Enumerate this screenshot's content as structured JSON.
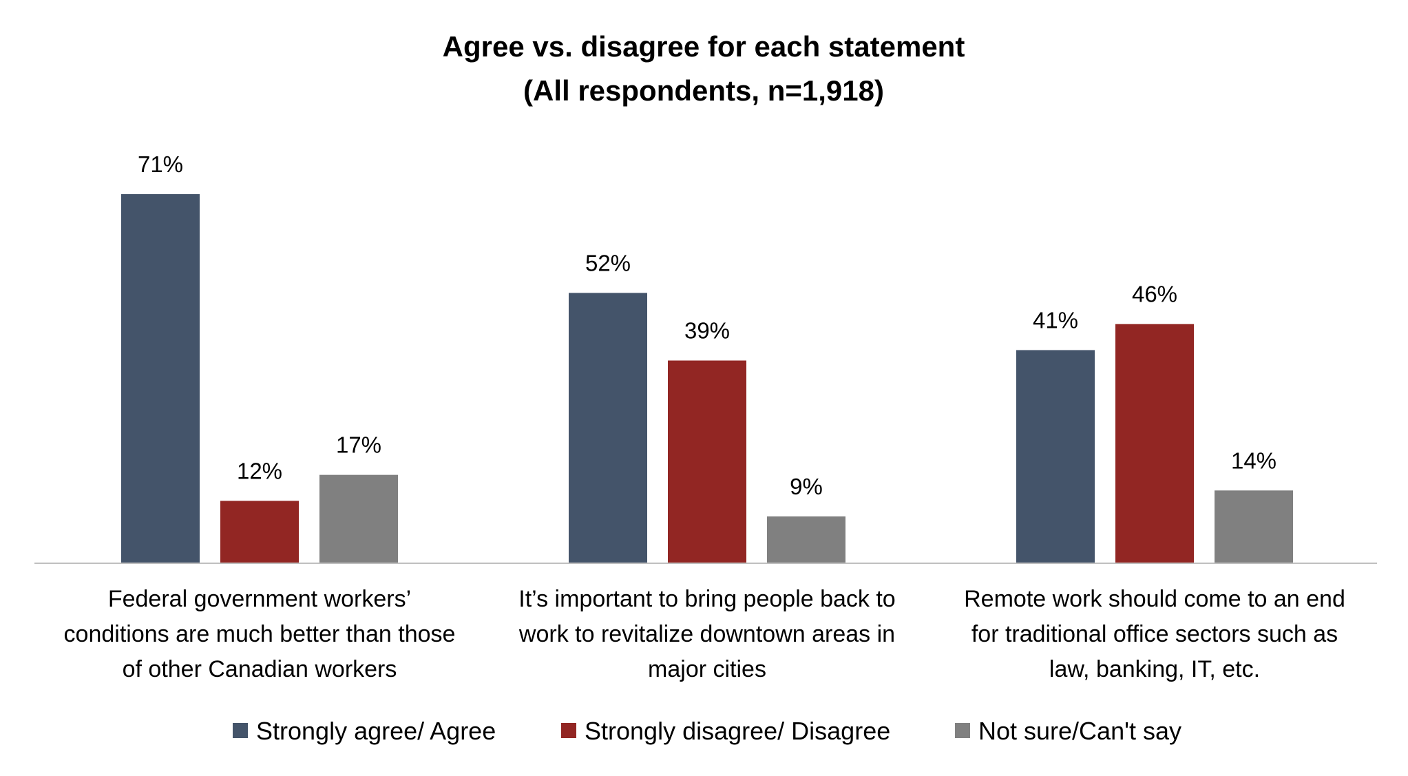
{
  "chart_data": {
    "type": "bar",
    "title": "Agree vs. disagree for each statement",
    "subtitle": "(All respondents, n=1,918)",
    "categories": [
      "Federal government workers’ conditions are much better than those of other Canadian workers",
      "It’s important to bring people back to work to revitalize downtown areas in major cities",
      "Remote work should come to an end for traditional office sectors such as law, banking, IT, etc."
    ],
    "category_lines": [
      [
        "Federal government workers’",
        "conditions are much better than those",
        "of other Canadian workers"
      ],
      [
        "It’s important to bring people back to",
        "work to revitalize downtown areas in",
        "major cities"
      ],
      [
        "Remote work should come to an end",
        "for traditional office sectors such as",
        "law, banking, IT, etc."
      ]
    ],
    "series": [
      {
        "name": "Strongly agree/ Agree",
        "color": "#44546A",
        "values": [
          71,
          52,
          41
        ],
        "labels": [
          "71%",
          "52%",
          "41%"
        ]
      },
      {
        "name": "Strongly disagree/ Disagree",
        "color": "#922623",
        "values": [
          12,
          39,
          46
        ],
        "labels": [
          "12%",
          "39%",
          "46%"
        ]
      },
      {
        "name": "Not sure/Can't say",
        "color": "#808080",
        "values": [
          17,
          9,
          14
        ],
        "labels": [
          "17%",
          "9%",
          "14%"
        ]
      }
    ],
    "xlabel": "",
    "ylabel": "",
    "ylim": [
      0,
      80
    ],
    "grid": false,
    "legend": "bottom"
  }
}
